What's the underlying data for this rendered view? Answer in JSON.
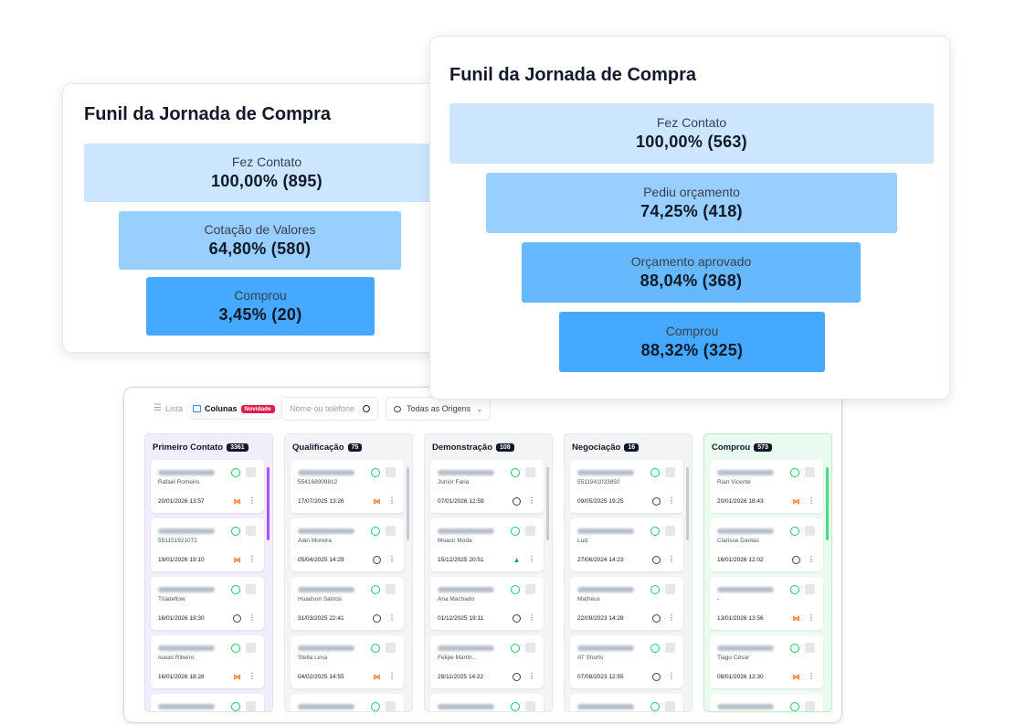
{
  "funnel_small": {
    "title": "Funil da Jornada de Compra",
    "stages": [
      {
        "label": "Fez Contato",
        "value": "100,00% (895)"
      },
      {
        "label": "Cotação de Valores",
        "value": "64,80% (580)"
      },
      {
        "label": "Comprou",
        "value": "3,45% (20)"
      }
    ]
  },
  "funnel_large": {
    "title": "Funil da Jornada de Compra",
    "stages": [
      {
        "label": "Fez Contato",
        "value": "100,00% (563)"
      },
      {
        "label": "Pediu orçamento",
        "value": "74,25% (418)"
      },
      {
        "label": "Orçamento aprovado",
        "value": "88,04% (368)"
      },
      {
        "label": "Comprou",
        "value": "88,32% (325)"
      }
    ]
  },
  "colors": {
    "stage_1": "#cce6ff",
    "stage_2": "#99cfff",
    "stage_3": "#66b8ff",
    "stage_4": "#45a9ff",
    "whatsapp": "#22c55e",
    "novidade_badge": "#e11d48"
  },
  "toolbar": {
    "lista_label": "Lista",
    "colunas_label": "Colunas",
    "novidade_badge": "Novidade",
    "search_placeholder": "Nome ou telefone",
    "origins_selected": "Todas as Origens"
  },
  "columns": [
    {
      "title": "Primeiro Contato",
      "count": "3361",
      "cards": [
        {
          "name": "Rafael Romeiro",
          "date": "20/01/2026 13:57",
          "origin": "link-icon"
        },
        {
          "name": "551151921072",
          "date": "19/01/2026 19:10",
          "origin": "link-icon"
        },
        {
          "name": "Triadeflow",
          "date": "16/01/2026 19:30",
          "origin": "globe-icon"
        },
        {
          "name": "Isaias Ribeiro",
          "date": "16/01/2026 18:28",
          "origin": "link-icon"
        }
      ]
    },
    {
      "title": "Qualificação",
      "count": "75",
      "cards": [
        {
          "name": "554168909812",
          "date": "17/07/2025 13:26",
          "origin": "link-icon"
        },
        {
          "name": "Alan Moreira",
          "date": "05/04/2025 14:29",
          "origin": "globe-icon"
        },
        {
          "name": "Huadson Santos",
          "date": "31/03/2025 22:41",
          "origin": "globe-icon"
        },
        {
          "name": "Stella Lima",
          "date": "04/02/2025 14:55",
          "origin": "link-icon"
        }
      ]
    },
    {
      "title": "Demonstração",
      "count": "108",
      "cards": [
        {
          "name": "Junior Faria",
          "date": "07/01/2026 12:59",
          "origin": "globe-icon"
        },
        {
          "name": "Moacir Moda",
          "date": "15/12/2025 20:51",
          "origin": "google-ads-icon"
        },
        {
          "name": "Ana Machado",
          "date": "01/12/2025 19:11",
          "origin": "globe-icon"
        },
        {
          "name": "Felipe Martin...",
          "date": "28/11/2025 14:22",
          "origin": "globe-icon"
        }
      ]
    },
    {
      "title": "Negociação",
      "count": "16",
      "cards": [
        {
          "name": "5511941033850",
          "date": "09/05/2025 19:25",
          "origin": "globe-icon"
        },
        {
          "name": "Luiz",
          "date": "27/06/2024 14:23",
          "origin": "globe-icon"
        },
        {
          "name": "Matheus",
          "date": "22/09/2023 14:28",
          "origin": "globe-icon"
        },
        {
          "name": "AT Shorts",
          "date": "07/08/2023 12:55",
          "origin": "globe-icon"
        }
      ]
    },
    {
      "title": "Comprou",
      "count": "573",
      "cards": [
        {
          "name": "Rian Vicente",
          "date": "20/01/2026 18:43",
          "origin": "link-icon"
        },
        {
          "name": "Clarisse Dantas",
          "date": "16/01/2026 12:02",
          "origin": "globe-icon"
        },
        {
          "name": "-",
          "date": "13/01/2026 13:56",
          "origin": "link-icon"
        },
        {
          "name": "Tiago César",
          "date": "08/01/2026 12:30",
          "origin": "link-icon"
        }
      ]
    }
  ]
}
